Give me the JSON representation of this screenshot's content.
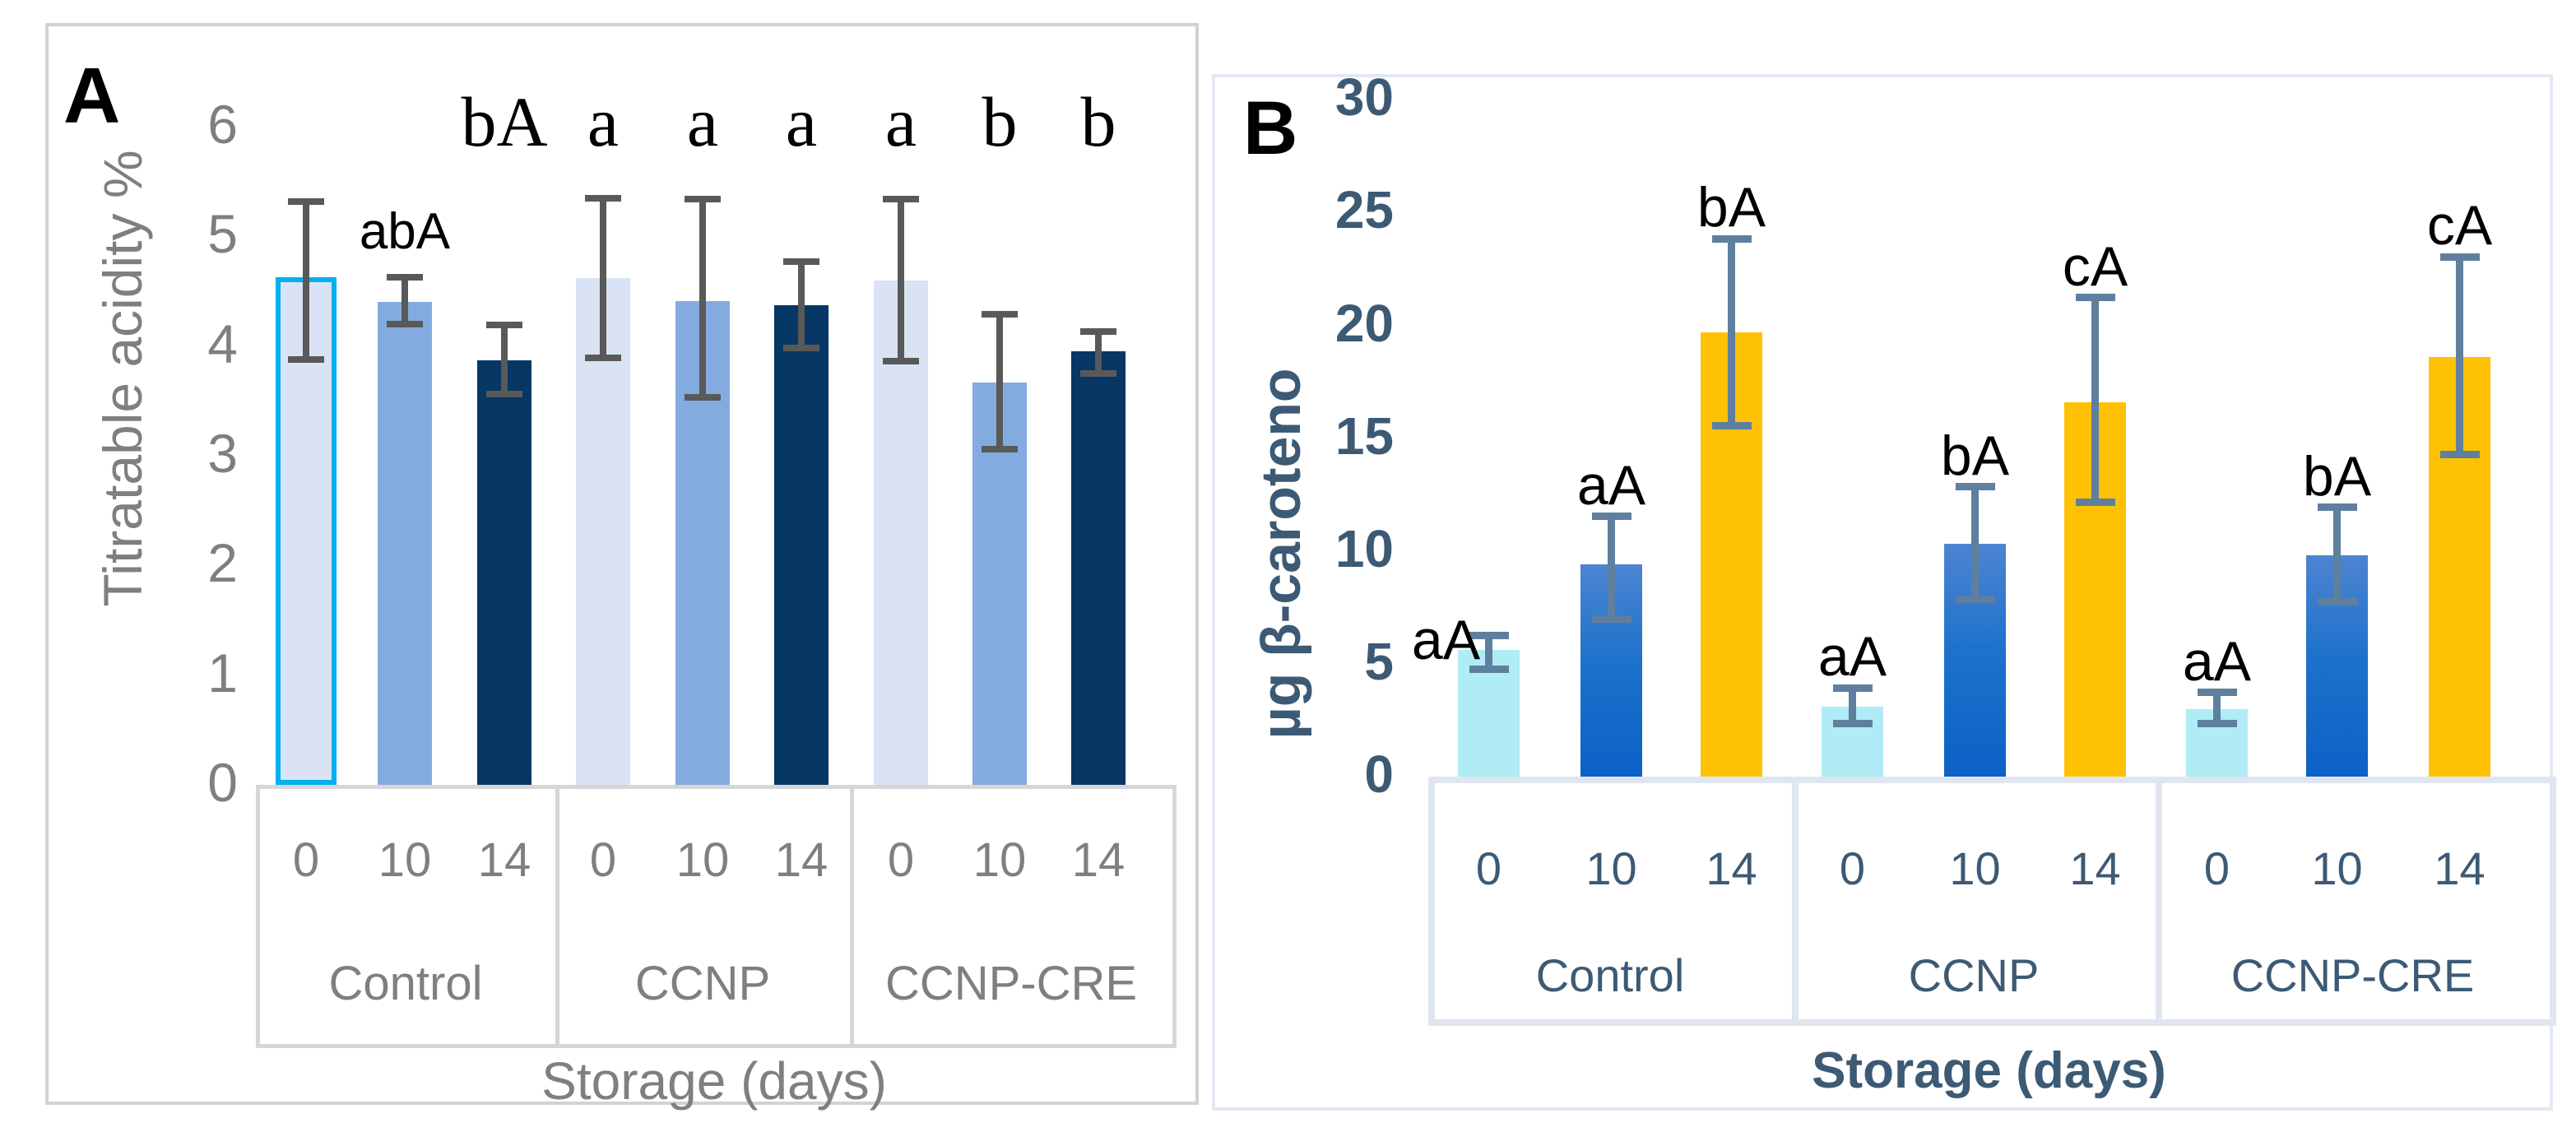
{
  "chart_data": [
    {
      "type": "bar",
      "panel_label": "A",
      "title": "",
      "ylabel": "Titratable acidity %",
      "xlabel": "Storage (days)",
      "ylim": [
        0,
        6
      ],
      "yticks": [
        0,
        1,
        2,
        3,
        4,
        5,
        6
      ],
      "grid": false,
      "legend": "none",
      "groups": [
        "Control",
        "CCNP",
        "CCNP-CRE"
      ],
      "categories": [
        "0",
        "10",
        "14"
      ],
      "colors": {
        "bar_day0": "#d9e3f4",
        "bar_day10": "#84abdf",
        "bar_day14": "#063765",
        "highlight_border": "#00b0f0",
        "error_bar": "#595959",
        "axis_text": "#7f7f7f",
        "table_line": "#d6d6d6",
        "letters": "#000000"
      },
      "points": [
        {
          "group": "Control",
          "day": "0",
          "value": 4.6,
          "err_low": 3.85,
          "err_high": 5.35,
          "letter": "",
          "highlighted": true
        },
        {
          "group": "Control",
          "day": "10",
          "value": 4.4,
          "err_low": 4.17,
          "err_high": 4.66,
          "letter": "abA",
          "letter_y": 5.02,
          "letter_font": "sans"
        },
        {
          "group": "Control",
          "day": "14",
          "value": 3.87,
          "err_low": 3.53,
          "err_high": 4.22,
          "letter": "bA",
          "letter_y": 6.02
        },
        {
          "group": "CCNP",
          "day": "0",
          "value": 4.62,
          "err_low": 3.86,
          "err_high": 5.38,
          "letter": "a",
          "letter_y": 6.02
        },
        {
          "group": "CCNP",
          "day": "10",
          "value": 4.41,
          "err_low": 3.5,
          "err_high": 5.37,
          "letter": "a",
          "letter_y": 6.02
        },
        {
          "group": "CCNP",
          "day": "14",
          "value": 4.37,
          "err_low": 3.95,
          "err_high": 4.8,
          "letter": "a",
          "letter_y": 6.02
        },
        {
          "group": "CCNP-CRE",
          "day": "0",
          "value": 4.6,
          "err_low": 3.83,
          "err_high": 5.37,
          "letter": "a",
          "letter_y": 6.02
        },
        {
          "group": "CCNP-CRE",
          "day": "10",
          "value": 3.67,
          "err_low": 3.03,
          "err_high": 4.32,
          "letter": "b",
          "letter_y": 6.02
        },
        {
          "group": "CCNP-CRE",
          "day": "14",
          "value": 3.95,
          "err_low": 3.72,
          "err_high": 4.16,
          "letter": "b",
          "letter_y": 6.02
        }
      ]
    },
    {
      "type": "bar",
      "panel_label": "B",
      "title": "",
      "ylabel": "µg β-caroteno",
      "xlabel": "Storage (days)",
      "ylim": [
        0,
        30
      ],
      "yticks": [
        0,
        5,
        10,
        15,
        20,
        25,
        30
      ],
      "grid": false,
      "legend": "none",
      "groups": [
        "Control",
        "CCNP",
        "CCNP-CRE"
      ],
      "categories": [
        "0",
        "10",
        "14"
      ],
      "colors": {
        "bar_day0": "#b0ecf6",
        "bar_day10_top": "#4d84d1",
        "bar_day10_bottom": "#0b61c5",
        "bar_day14": "#ffc103",
        "error_bar": "#5f7f9e",
        "axis_text": "#3d5a75",
        "table_line": "#dfe6ef",
        "letters": "#000000"
      },
      "points": [
        {
          "group": "Control",
          "day": "0",
          "value": 5.6,
          "err_low": 4.6,
          "err_high": 6.4,
          "letter": "aA",
          "letter_dx": -52,
          "letter_dy": 43
        },
        {
          "group": "Control",
          "day": "10",
          "value": 9.4,
          "err_low": 6.8,
          "err_high": 11.7,
          "letter": "aA"
        },
        {
          "group": "Control",
          "day": "14",
          "value": 19.7,
          "err_low": 15.4,
          "err_high": 24.0,
          "letter": "bA"
        },
        {
          "group": "CCNP",
          "day": "0",
          "value": 3.1,
          "err_low": 2.2,
          "err_high": 4.1,
          "letter": "aA"
        },
        {
          "group": "CCNP",
          "day": "10",
          "value": 10.3,
          "err_low": 7.7,
          "err_high": 13.0,
          "letter": "bA"
        },
        {
          "group": "CCNP",
          "day": "14",
          "value": 16.6,
          "err_low": 12.0,
          "err_high": 21.4,
          "letter": "cA"
        },
        {
          "group": "CCNP-CRE",
          "day": "0",
          "value": 3.0,
          "err_low": 2.2,
          "err_high": 3.9,
          "letter": "aA"
        },
        {
          "group": "CCNP-CRE",
          "day": "10",
          "value": 9.8,
          "err_low": 7.6,
          "err_high": 12.1,
          "letter": "bA"
        },
        {
          "group": "CCNP-CRE",
          "day": "14",
          "value": 18.6,
          "err_low": 14.1,
          "err_high": 23.2,
          "letter": "cA"
        }
      ]
    }
  ]
}
